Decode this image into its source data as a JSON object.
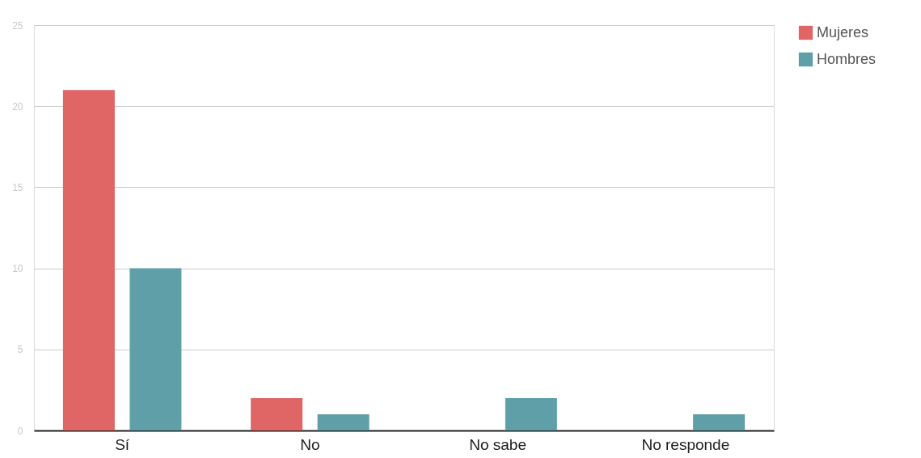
{
  "chart_data": {
    "type": "bar",
    "categories": [
      "Sí",
      "No",
      "No sabe",
      "No responde"
    ],
    "series": [
      {
        "name": "Mujeres",
        "color": "#e06666",
        "values": [
          21,
          2,
          0,
          0
        ]
      },
      {
        "name": "Hombres",
        "color": "#5fa0a8",
        "values": [
          10,
          1,
          2,
          1
        ]
      }
    ],
    "ylim": [
      0,
      25
    ],
    "yticks": [
      0,
      5,
      10,
      15,
      20,
      25
    ],
    "grid": "y",
    "legend": "top right"
  }
}
